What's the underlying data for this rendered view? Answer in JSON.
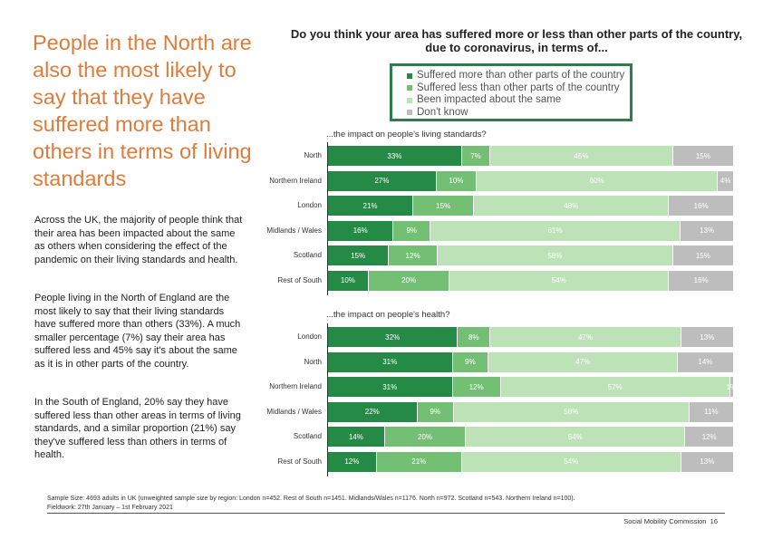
{
  "headline": "People in the North are also the most likely to say that they have suffered more than others in terms of living standards",
  "paragraphs": [
    "Across the UK, the majority of people think that their area has been impacted about the same as others when considering the effect of the pandemic on their living standards and health.",
    "People living in the North of England are the most likely to say that their living standards have suffered more than others (33%). A much smaller percentage (7%) say their area has suffered less and 45% say it's about the same as it is in other parts of the country.",
    "In the South of England, 20% say they have suffered less than other areas in terms of living standards, and a similar proportion (21%) say they've suffered less than others in terms of health."
  ],
  "chart_data": [
    {
      "type": "bar",
      "orientation": "horizontal-stacked-100",
      "title": "Do you think your area has suffered more or less than other parts of the country, due to coronavirus, in terms of...",
      "subtitle": "...the impact on people's living standards?",
      "categories": [
        "North",
        "Northern Ireland",
        "London",
        "Midlands / Wales",
        "Scotland",
        "Rest of South"
      ],
      "series": [
        {
          "name": "Suffered more than other parts of the country",
          "color": "#268a47",
          "values": [
            33,
            27,
            21,
            16,
            15,
            10
          ]
        },
        {
          "name": "Suffered less than other parts of the country",
          "color": "#73c074",
          "values": [
            7,
            10,
            15,
            9,
            12,
            20
          ]
        },
        {
          "name": "Been impacted about the same",
          "color": "#bde2b7",
          "values": [
            45,
            60,
            48,
            61,
            58,
            54
          ]
        },
        {
          "name": "Don't know",
          "color": "#bdbdbd",
          "values": [
            15,
            4,
            16,
            13,
            15,
            16
          ]
        }
      ]
    },
    {
      "type": "bar",
      "orientation": "horizontal-stacked-100",
      "subtitle": "...the impact on people's health?",
      "categories": [
        "London",
        "North",
        "Northern Ireland",
        "Midlands / Wales",
        "Scotland",
        "Rest of South"
      ],
      "series": [
        {
          "name": "Suffered more than other parts of the country",
          "color": "#268a47",
          "values": [
            32,
            31,
            31,
            22,
            14,
            12
          ]
        },
        {
          "name": "Suffered less than other parts of the country",
          "color": "#73c074",
          "values": [
            8,
            9,
            12,
            9,
            20,
            21
          ]
        },
        {
          "name": "Been impacted about the same",
          "color": "#bde2b7",
          "values": [
            47,
            47,
            57,
            58,
            54,
            54
          ]
        },
        {
          "name": "Don't know",
          "color": "#bdbdbd",
          "values": [
            13,
            14,
            1,
            11,
            12,
            13
          ]
        }
      ]
    }
  ],
  "footnote": {
    "sample": "Sample Size: 4693 adults in UK (unweighted sample size by region: London n=452. Rest of South n=1451. Midlands/Wales n=1176. North n=972. Scotland n=543. Northern Ireland n=100).",
    "fieldwork": "Fieldwork: 27th January – 1st February 2021"
  },
  "footer": {
    "org": "Social Mobility Commission",
    "page": "16"
  }
}
